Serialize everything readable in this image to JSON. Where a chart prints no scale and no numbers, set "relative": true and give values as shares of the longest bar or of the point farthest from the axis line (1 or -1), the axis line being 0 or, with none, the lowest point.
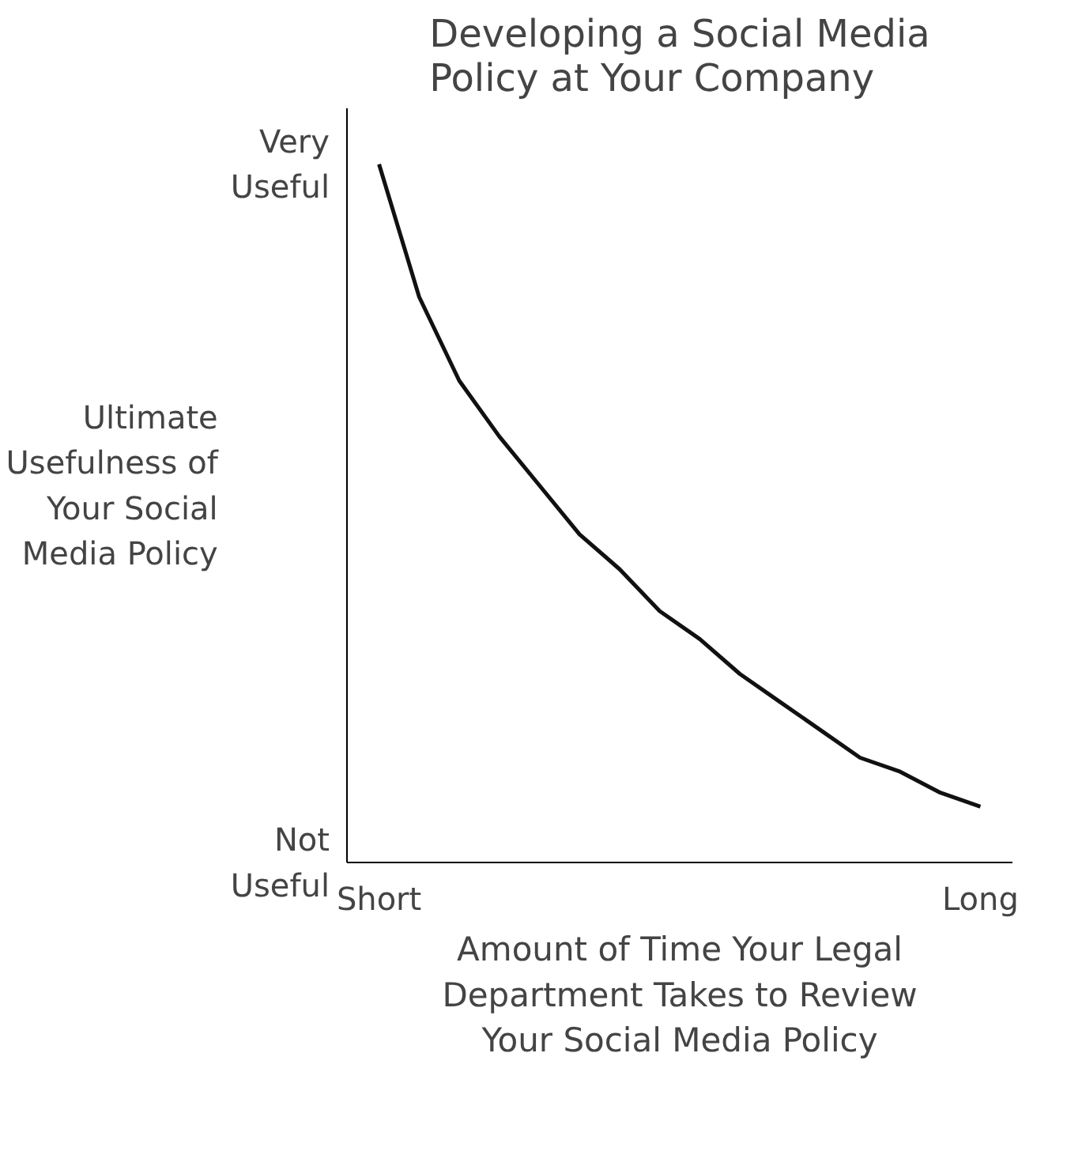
{
  "chart_data": {
    "type": "line",
    "title": "Developing a Social Media Policy at Your Company",
    "ylabel": "Ultimate Usefulness of Your Social Media Policy",
    "xlabel": "Amount of Time Your Legal Department Takes to Review Your Social Media Policy",
    "relative": true,
    "categories": [
      "Short",
      null,
      null,
      null,
      null,
      null,
      null,
      null,
      null,
      null,
      null,
      null,
      null,
      null,
      null,
      "Long"
    ],
    "series": [
      {
        "color": "#111111",
        "values": [
          1,
          0.81,
          0.69,
          0.61,
          0.54,
          0.47,
          0.42,
          0.36,
          0.32,
          0.27,
          0.23,
          0.19,
          0.15,
          0.13,
          0.1,
          0.08
        ]
      }
    ],
    "annotations": [
      "Very Useful",
      "Not Useful"
    ],
    "grid": false,
    "marker": "none",
    "line_style": "solid"
  }
}
